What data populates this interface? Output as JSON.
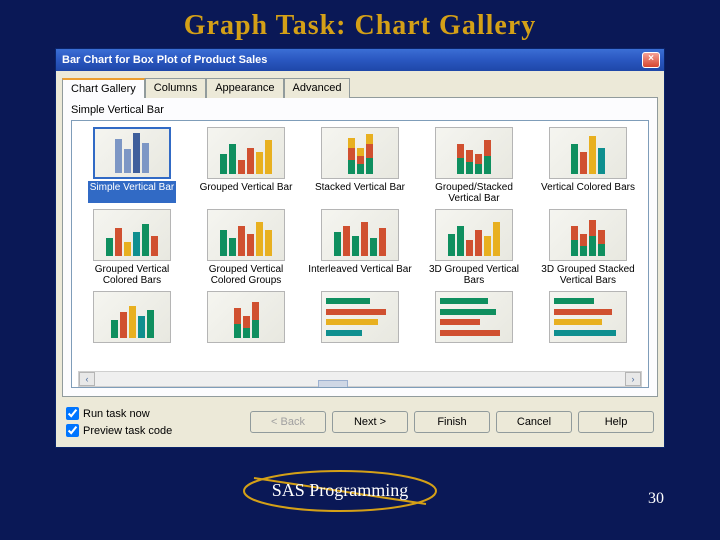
{
  "slide": {
    "title": "Graph Task: Chart Gallery",
    "footer_text": "SAS Programming",
    "page_number": "30",
    "background": "#0a1856",
    "title_color": "#d4a017"
  },
  "dialog": {
    "title": "Bar Chart for Box Plot of Product Sales",
    "tabs": [
      "Chart Gallery",
      "Columns",
      "Appearance",
      "Advanced"
    ],
    "active_tab": 0,
    "panel_label": "Simple Vertical Bar",
    "selected_item": 0,
    "colors": {
      "c1": "#7d97c5",
      "c2": "#3f5f9c",
      "g": "#0f8f5f",
      "r": "#d05030",
      "y": "#e8b020",
      "t": "#0f8f8f"
    },
    "gallery": [
      {
        "label": "Simple Vertical Bar",
        "bars": [
          {
            "h": 34,
            "c": "c1"
          },
          {
            "h": 24,
            "c": "c1"
          },
          {
            "h": 40,
            "c": "c2"
          },
          {
            "h": 30,
            "c": "c1"
          }
        ]
      },
      {
        "label": "Grouped Vertical Bar",
        "bars": [
          {
            "h": 20,
            "c": "g"
          },
          {
            "h": 30,
            "c": "g"
          },
          {
            "h": 14,
            "c": "r"
          },
          {
            "h": 26,
            "c": "r"
          },
          {
            "h": 22,
            "c": "y"
          },
          {
            "h": 34,
            "c": "y"
          }
        ]
      },
      {
        "label": "Stacked Vertical Bar",
        "bars": [
          {
            "h": 36,
            "c": "g",
            "stack": [
              14,
              12,
              10
            ]
          },
          {
            "h": 26,
            "c": "r",
            "stack": [
              10,
              8,
              8
            ]
          },
          {
            "h": 40,
            "c": "y",
            "stack": [
              16,
              14,
              10
            ]
          }
        ]
      },
      {
        "label": "Grouped/Stacked Vertical Bar",
        "bars": [
          {
            "h": 30,
            "c": "g",
            "stack": [
              16,
              14
            ]
          },
          {
            "h": 24,
            "c": "r",
            "stack": [
              12,
              12
            ]
          },
          {
            "h": 20,
            "c": "g",
            "stack": [
              10,
              10
            ]
          },
          {
            "h": 34,
            "c": "y",
            "stack": [
              18,
              16
            ]
          }
        ]
      },
      {
        "label": "Vertical Colored Bars",
        "bars": [
          {
            "h": 30,
            "c": "g"
          },
          {
            "h": 22,
            "c": "r"
          },
          {
            "h": 38,
            "c": "y"
          },
          {
            "h": 26,
            "c": "t"
          }
        ]
      },
      {
        "label": "Grouped Vertical Colored Bars",
        "bars": [
          {
            "h": 18,
            "c": "g"
          },
          {
            "h": 28,
            "c": "r"
          },
          {
            "h": 14,
            "c": "y"
          },
          {
            "h": 24,
            "c": "t"
          },
          {
            "h": 32,
            "c": "g"
          },
          {
            "h": 20,
            "c": "r"
          }
        ]
      },
      {
        "label": "Grouped Vertical Colored Groups",
        "bars": [
          {
            "h": 26,
            "c": "g"
          },
          {
            "h": 18,
            "c": "g"
          },
          {
            "h": 30,
            "c": "r"
          },
          {
            "h": 22,
            "c": "r"
          },
          {
            "h": 34,
            "c": "y"
          },
          {
            "h": 26,
            "c": "y"
          }
        ]
      },
      {
        "label": "Interleaved Vertical Bar",
        "bars": [
          {
            "h": 24,
            "c": "g"
          },
          {
            "h": 30,
            "c": "r"
          },
          {
            "h": 20,
            "c": "g"
          },
          {
            "h": 34,
            "c": "r"
          },
          {
            "h": 18,
            "c": "g"
          },
          {
            "h": 28,
            "c": "r"
          }
        ]
      },
      {
        "label": "3D Grouped Vertical Bars",
        "bars": [
          {
            "h": 22,
            "c": "g"
          },
          {
            "h": 30,
            "c": "g"
          },
          {
            "h": 16,
            "c": "r"
          },
          {
            "h": 26,
            "c": "r"
          },
          {
            "h": 20,
            "c": "y"
          },
          {
            "h": 34,
            "c": "y"
          }
        ]
      },
      {
        "label": "3D Grouped Stacked Vertical Bars",
        "bars": [
          {
            "h": 30,
            "c": "g",
            "stack": [
              16,
              14
            ]
          },
          {
            "h": 22,
            "c": "r",
            "stack": [
              10,
              12
            ]
          },
          {
            "h": 36,
            "c": "y",
            "stack": [
              20,
              16
            ]
          },
          {
            "h": 26,
            "c": "t",
            "stack": [
              12,
              14
            ]
          }
        ]
      },
      {
        "label": "",
        "bars": [
          {
            "h": 18,
            "c": "g"
          },
          {
            "h": 26,
            "c": "r"
          },
          {
            "h": 32,
            "c": "y"
          },
          {
            "h": 22,
            "c": "t"
          },
          {
            "h": 28,
            "c": "g"
          }
        ]
      },
      {
        "label": "",
        "bars": [
          {
            "h": 30,
            "c": "g",
            "stack": [
              14,
              16
            ]
          },
          {
            "h": 22,
            "c": "r",
            "stack": [
              10,
              12
            ]
          },
          {
            "h": 36,
            "c": "y",
            "stack": [
              18,
              18
            ]
          }
        ]
      },
      {
        "label": "",
        "horiz": true,
        "bars": [
          {
            "h": 44,
            "c": "g"
          },
          {
            "h": 60,
            "c": "r"
          },
          {
            "h": 52,
            "c": "y"
          },
          {
            "h": 36,
            "c": "t"
          }
        ]
      },
      {
        "label": "",
        "horiz": true,
        "bars": [
          {
            "h": 48,
            "c": "g"
          },
          {
            "h": 56,
            "c": "g"
          },
          {
            "h": 40,
            "c": "r"
          },
          {
            "h": 60,
            "c": "r"
          }
        ]
      },
      {
        "label": "",
        "horiz": true,
        "bars": [
          {
            "h": 40,
            "c": "g"
          },
          {
            "h": 58,
            "c": "r"
          },
          {
            "h": 48,
            "c": "y"
          },
          {
            "h": 62,
            "c": "t"
          }
        ]
      }
    ],
    "checkboxes": [
      {
        "label": "Run task now",
        "checked": true
      },
      {
        "label": "Preview task code",
        "checked": true
      }
    ],
    "buttons": [
      {
        "label": "< Back",
        "enabled": false
      },
      {
        "label": "Next >",
        "enabled": true
      },
      {
        "label": "Finish",
        "enabled": true
      },
      {
        "label": "Cancel",
        "enabled": true
      },
      {
        "label": "Help",
        "enabled": true
      }
    ]
  }
}
